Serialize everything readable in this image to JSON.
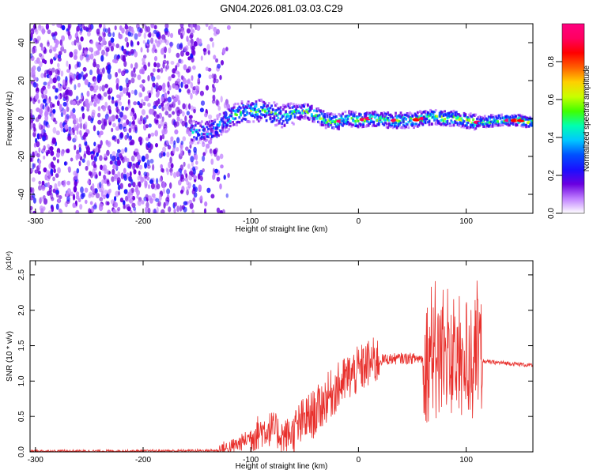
{
  "figure_title": "GN04.2026.081.03.03.C29",
  "chart_data": [
    {
      "type": "heatmap",
      "title": "",
      "xlabel": "Height of straight line (km)",
      "ylabel": "Frequency (Hz)",
      "xlim": [
        -305,
        162
      ],
      "ylim": [
        -50,
        50
      ],
      "xticks": [
        -300,
        -200,
        -100,
        0,
        100
      ],
      "yticks": [
        -40,
        -20,
        0,
        20,
        40
      ],
      "grid": false,
      "colorbar": {
        "label": "Normalized spectral amplitude",
        "range": [
          0,
          1
        ],
        "ticks": [
          "0.0",
          "0.2",
          "0.4",
          "0.6",
          "0.8"
        ],
        "colors": [
          "#ffffff",
          "#c080ff",
          "#6a00e0",
          "#1a10ff",
          "#0050ff",
          "#00c8ff",
          "#00ffb0",
          "#40ff00",
          "#c8ff00",
          "#ffd000",
          "#ff6000",
          "#ff0000",
          "#ff0060",
          "#ff0080"
        ]
      },
      "ridge": [
        {
          "x": -150,
          "y": -7
        },
        {
          "x": -140,
          "y": -7
        },
        {
          "x": -130,
          "y": -4
        },
        {
          "x": -120,
          "y": 0
        },
        {
          "x": -110,
          "y": 3
        },
        {
          "x": -100,
          "y": 4
        },
        {
          "x": -90,
          "y": 4
        },
        {
          "x": -80,
          "y": 3
        },
        {
          "x": -70,
          "y": 1
        },
        {
          "x": -60,
          "y": 3
        },
        {
          "x": -50,
          "y": 4
        },
        {
          "x": -40,
          "y": 2
        },
        {
          "x": -30,
          "y": -1
        },
        {
          "x": -20,
          "y": -2
        },
        {
          "x": -10,
          "y": 0
        },
        {
          "x": 0,
          "y": -1
        },
        {
          "x": 10,
          "y": 0
        },
        {
          "x": 30,
          "y": -1
        },
        {
          "x": 50,
          "y": -1
        },
        {
          "x": 60,
          "y": 0
        },
        {
          "x": 70,
          "y": 1
        },
        {
          "x": 80,
          "y": 0
        },
        {
          "x": 90,
          "y": 0
        },
        {
          "x": 100,
          "y": -1
        },
        {
          "x": 110,
          "y": -2
        },
        {
          "x": 130,
          "y": -1
        },
        {
          "x": 150,
          "y": -1
        },
        {
          "x": 160,
          "y": -2
        }
      ]
    },
    {
      "type": "line",
      "title": "",
      "xlabel": "Height of straight line (km)",
      "ylabel": "SNR (10 * v/v)",
      "y_multiplier": "(x10⁴)",
      "xlim": [
        -305,
        162
      ],
      "ylim": [
        0,
        2.7
      ],
      "xticks": [
        -300,
        -200,
        -100,
        0,
        100
      ],
      "yticks": [
        "0.0",
        "0.5",
        "1.0",
        "1.5",
        "2.0",
        "2.5"
      ],
      "grid": false,
      "series_color": "#e8302c",
      "envelope": [
        {
          "x": -305,
          "y": 0.01
        },
        {
          "x": -200,
          "y": 0.01
        },
        {
          "x": -130,
          "y": 0.02
        },
        {
          "x": -120,
          "y": 0.05
        },
        {
          "x": -110,
          "y": 0.12
        },
        {
          "x": -100,
          "y": 0.22
        },
        {
          "x": -90,
          "y": 0.3
        },
        {
          "x": -80,
          "y": 0.33
        },
        {
          "x": -70,
          "y": 0.22
        },
        {
          "x": -60,
          "y": 0.28
        },
        {
          "x": -50,
          "y": 0.45
        },
        {
          "x": -40,
          "y": 0.55
        },
        {
          "x": -30,
          "y": 0.75
        },
        {
          "x": -20,
          "y": 0.9
        },
        {
          "x": -10,
          "y": 1.05
        },
        {
          "x": 0,
          "y": 1.15
        },
        {
          "x": 10,
          "y": 1.25
        },
        {
          "x": 20,
          "y": 1.3
        },
        {
          "x": 40,
          "y": 1.32
        },
        {
          "x": 60,
          "y": 1.32
        },
        {
          "x": 70,
          "y": 1.3
        },
        {
          "x": 80,
          "y": 1.3
        },
        {
          "x": 90,
          "y": 1.3
        },
        {
          "x": 100,
          "y": 1.3
        },
        {
          "x": 110,
          "y": 1.3
        },
        {
          "x": 120,
          "y": 1.27
        },
        {
          "x": 140,
          "y": 1.25
        },
        {
          "x": 162,
          "y": 1.22
        }
      ],
      "noise_bands": [
        {
          "x0": -305,
          "x1": -130,
          "amp": 0.02
        },
        {
          "x0": -130,
          "x1": -100,
          "amp": 0.12
        },
        {
          "x0": -100,
          "x1": -60,
          "amp": 0.25
        },
        {
          "x0": -60,
          "x1": 20,
          "amp": 0.35
        },
        {
          "x0": 20,
          "x1": 60,
          "amp": 0.08
        },
        {
          "x0": 60,
          "x1": 115,
          "amp": 0.9
        },
        {
          "x0": 115,
          "x1": 162,
          "amp": 0.03
        }
      ]
    }
  ]
}
